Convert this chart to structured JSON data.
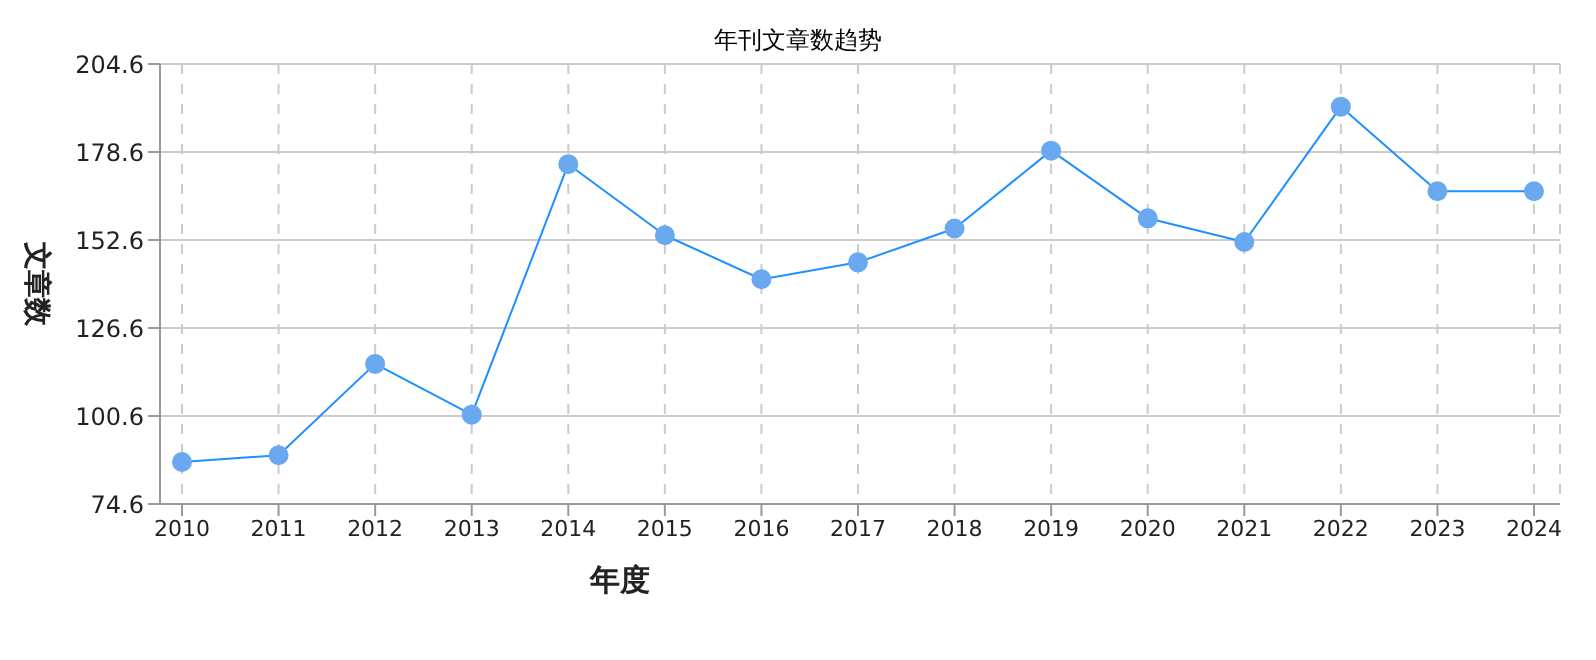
{
  "chart_data": {
    "type": "line",
    "title": "年刊文章数趋势",
    "xlabel": "年度",
    "ylabel": "文章数",
    "categories": [
      "2010",
      "2011",
      "2012",
      "2013",
      "2014",
      "2015",
      "2016",
      "2017",
      "2018",
      "2019",
      "2020",
      "2021",
      "2022",
      "2023",
      "2024"
    ],
    "series": [
      {
        "color": "#1e90ff",
        "values": [
          87,
          89,
          116,
          101,
          175,
          154,
          141,
          146,
          156,
          179,
          159,
          152,
          192,
          167,
          167
        ]
      }
    ],
    "ylim": [
      74.6,
      204.6
    ],
    "yticks": [
      74.6,
      100.6,
      126.6,
      152.6,
      178.6,
      204.6
    ],
    "grid": true,
    "marker": "circle"
  }
}
